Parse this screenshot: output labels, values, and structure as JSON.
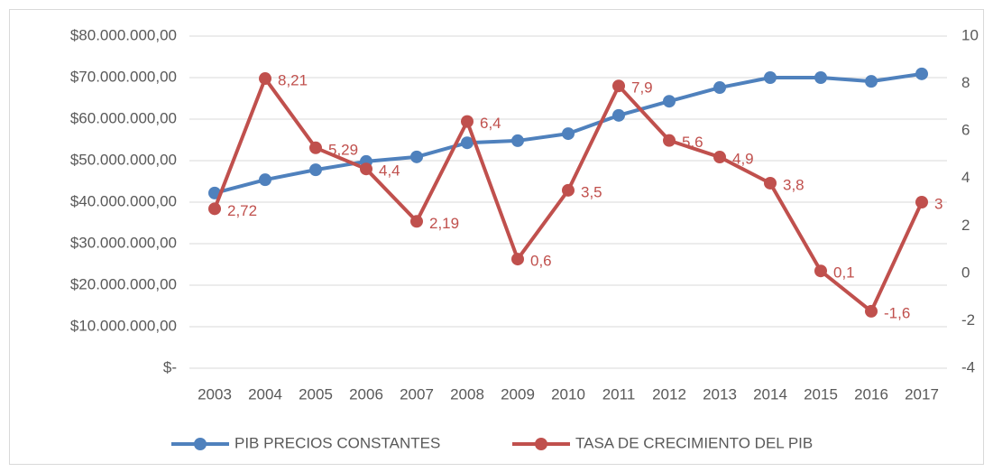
{
  "chart_data": {
    "type": "line",
    "categories": [
      "2003",
      "2004",
      "2005",
      "2006",
      "2007",
      "2008",
      "2009",
      "2010",
      "2011",
      "2012",
      "2013",
      "2014",
      "2015",
      "2016",
      "2017"
    ],
    "series": [
      {
        "name": "PIB PRECIOS  CONSTANTES",
        "color": "#4f81bd",
        "values": [
          42200000,
          45400000,
          47800000,
          49800000,
          50900000,
          54300000,
          54800000,
          56500000,
          60900000,
          64300000,
          67600000,
          70000000,
          70000000,
          69100000,
          70900000
        ]
      },
      {
        "name": "TASA DE CRECIMIENTO DEL PIB",
        "color": "#c0504d",
        "axis": "y2",
        "values": [
          2.72,
          8.21,
          5.29,
          4.4,
          2.19,
          6.4,
          0.6,
          3.5,
          7.9,
          5.6,
          4.9,
          3.8,
          0.1,
          -1.6,
          3
        ],
        "value_labels": [
          "2,72",
          "8,21",
          "5,29",
          "4,4",
          "2,19",
          "6,4",
          "0,6",
          "3,5",
          "7,9",
          "5,6",
          "4,9",
          "3,8",
          "0,1",
          "-1,6",
          "3"
        ]
      }
    ],
    "ylim": [
      0,
      80000000
    ],
    "yticks": [
      {
        "value": 0,
        "label": "$-"
      },
      {
        "value": 10000000,
        "label": "$10.000.000,00"
      },
      {
        "value": 20000000,
        "label": "$20.000.000,00"
      },
      {
        "value": 30000000,
        "label": "$30.000.000,00"
      },
      {
        "value": 40000000,
        "label": "$40.000.000,00"
      },
      {
        "value": 50000000,
        "label": "$50.000.000,00"
      },
      {
        "value": 60000000,
        "label": "$60.000.000,00"
      },
      {
        "value": 70000000,
        "label": "$70.000.000,00"
      },
      {
        "value": 80000000,
        "label": "$80.000.000,00"
      }
    ],
    "y2lim": [
      -4,
      10
    ],
    "y2ticks": [
      -4,
      -2,
      0,
      2,
      4,
      6,
      8,
      10
    ],
    "grid": true,
    "legend": "bottom"
  }
}
